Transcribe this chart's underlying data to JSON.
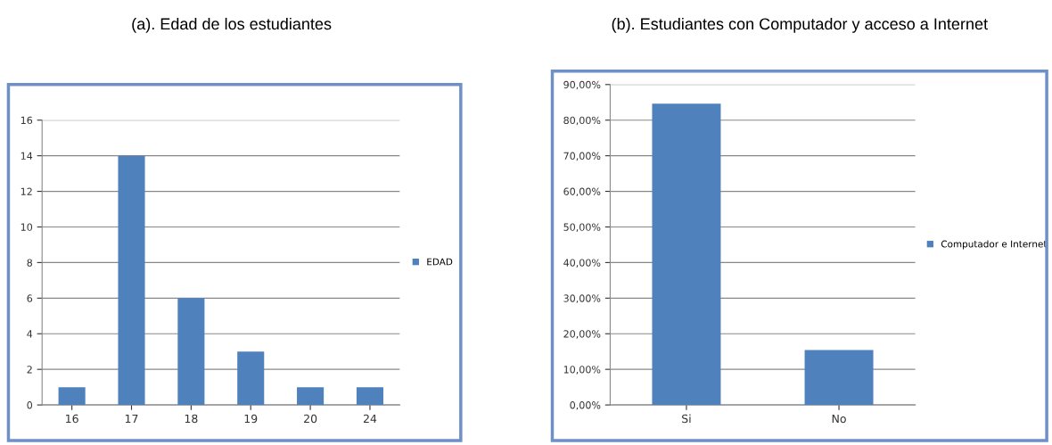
{
  "chart_data": [
    {
      "type": "bar",
      "title": "(a). Edad de los estudiantes",
      "categories": [
        "16",
        "17",
        "18",
        "19",
        "20",
        "24"
      ],
      "series": [
        {
          "name": "EDAD",
          "color": "#4f81bd",
          "values": [
            1,
            14,
            6,
            3,
            1,
            1
          ]
        }
      ],
      "ylim": [
        0,
        16
      ],
      "yticks": [
        0,
        2,
        4,
        6,
        8,
        10,
        12,
        14,
        16
      ],
      "grid": "y",
      "legend": "right"
    },
    {
      "type": "bar",
      "title": "(b). Estudiantes con Computador y acceso a Internet",
      "categories": [
        "Si",
        "No"
      ],
      "series": [
        {
          "name": "Computador e Internet",
          "color": "#4f81bd",
          "values": [
            84.6,
            15.4
          ]
        }
      ],
      "ylim": [
        0,
        90
      ],
      "yticks": [
        {
          "value": 0,
          "label": "0,00%"
        },
        {
          "value": 10,
          "label": "10,00%"
        },
        {
          "value": 20,
          "label": "20,00%"
        },
        {
          "value": 30,
          "label": "30,00%"
        },
        {
          "value": 40,
          "label": "40,00%"
        },
        {
          "value": 50,
          "label": "50,00%"
        },
        {
          "value": 60,
          "label": "60,00%"
        },
        {
          "value": 70,
          "label": "70,00%"
        },
        {
          "value": 80,
          "label": "80,00%"
        },
        {
          "value": 90,
          "label": "90,00%"
        }
      ],
      "grid": "y",
      "legend": "right"
    }
  ]
}
